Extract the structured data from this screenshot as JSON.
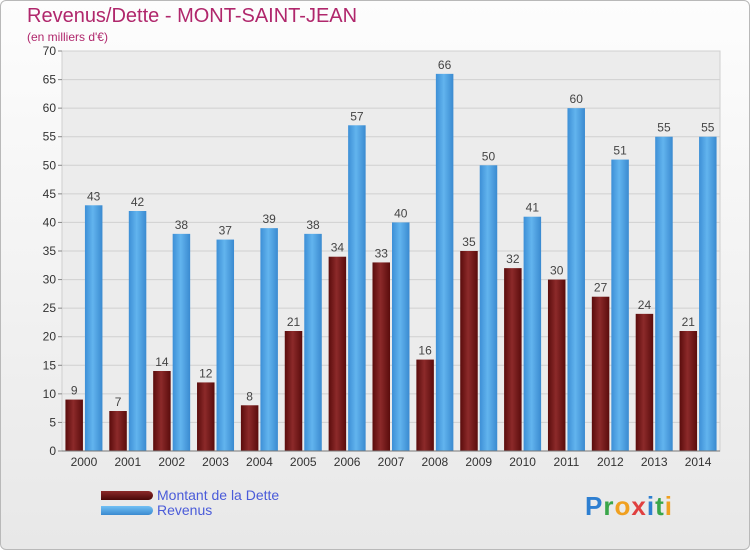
{
  "header": {
    "title": "Revenus/Dette - MONT-SAINT-JEAN",
    "unit": "(en milliers d'€)"
  },
  "chart_data": {
    "type": "bar",
    "categories": [
      "2000",
      "2001",
      "2002",
      "2003",
      "2004",
      "2005",
      "2006",
      "2007",
      "2008",
      "2009",
      "2010",
      "2011",
      "2012",
      "2013",
      "2014"
    ],
    "series": [
      {
        "name": "Montant de la Dette",
        "color": "#7a1a1a",
        "values": [
          9,
          7,
          14,
          12,
          8,
          21,
          34,
          33,
          16,
          35,
          32,
          30,
          27,
          24,
          21
        ]
      },
      {
        "name": "Revenus",
        "color": "#4a9ee0",
        "values": [
          43,
          42,
          38,
          37,
          39,
          38,
          57,
          40,
          66,
          50,
          41,
          60,
          51,
          55,
          55
        ]
      }
    ],
    "ylim": [
      0,
      70
    ],
    "ytick_step": 5,
    "grid": true,
    "legend_position": "bottom-left"
  },
  "logo": {
    "letters": [
      "P",
      "r",
      "o",
      "x",
      "i",
      "t",
      "i"
    ],
    "colors": [
      "#2e7fd1",
      "#3aa64a",
      "#f0a020",
      "#e04040",
      "#2e7fd1",
      "#3aa64a",
      "#f0a020"
    ]
  }
}
